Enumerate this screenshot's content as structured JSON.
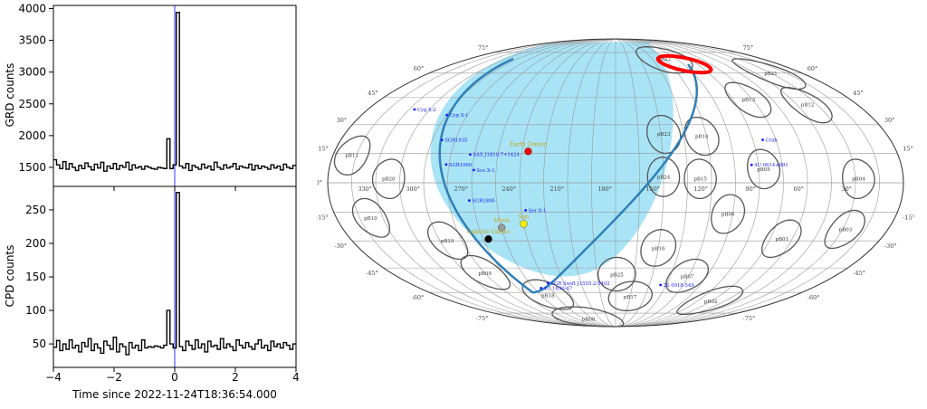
{
  "chart_data": [
    {
      "type": "line",
      "panels": [
        {
          "ylabel": "GRD counts",
          "ylim": [
            1200,
            4050
          ],
          "yticks": [
            "1500",
            "2000",
            "2500",
            "3000",
            "3500",
            "4000"
          ],
          "ytick_values": [
            1500,
            2000,
            2500,
            3000,
            3500,
            4000
          ],
          "background_values": [
            1620,
            1540,
            1480,
            1590,
            1470,
            1560,
            1500,
            1450,
            1530,
            1480,
            1570,
            1510,
            1460,
            1550,
            1490,
            1580,
            1440,
            1520,
            1480,
            1560,
            1470,
            1530,
            1500,
            1580,
            1460,
            1540,
            1490,
            1510,
            1470,
            1520,
            1500,
            1480,
            1470,
            1500,
            1490,
            1480,
            1950,
            1480,
            1540,
            1470,
            1520,
            1490,
            1560,
            1450,
            1530,
            1500,
            1470,
            1550,
            1490,
            1520,
            1460,
            1580,
            1500,
            1470,
            1540,
            1490,
            1510,
            1560,
            1470,
            1520,
            1500,
            1490,
            1550,
            1460,
            1530,
            1480,
            1520,
            1500,
            1470,
            1540,
            1490,
            1520,
            1460,
            1550,
            1500,
            1480,
            1530
          ],
          "peak_value": 3940
        },
        {
          "ylabel": "CPD counts",
          "ylim": [
            15,
            285
          ],
          "yticks": [
            "50",
            "100",
            "150",
            "200",
            "250"
          ],
          "ytick_values": [
            50,
            100,
            150,
            200,
            250
          ],
          "background_values": [
            45,
            55,
            40,
            50,
            42,
            56,
            44,
            48,
            38,
            52,
            46,
            58,
            40,
            50,
            44,
            36,
            54,
            48,
            42,
            60,
            38,
            50,
            46,
            34,
            52,
            44,
            48,
            40,
            56,
            44,
            46,
            45,
            47,
            46,
            44,
            48,
            100,
            50,
            44,
            52,
            46,
            40,
            54,
            48,
            42,
            56,
            44,
            50,
            38,
            54,
            46,
            48,
            42,
            58,
            44,
            50,
            46,
            40,
            56,
            48,
            44,
            52,
            46,
            42,
            50,
            56,
            44,
            48,
            40,
            54,
            46,
            50,
            44,
            52,
            48,
            42,
            50
          ],
          "peak_value": 276
        }
      ],
      "xlabel": "Time since 2022-11-24T18:36:54.000",
      "xlim": [
        -4,
        4
      ],
      "xticks": [
        "−4",
        "−2",
        "0",
        "2",
        "4"
      ],
      "xtick_values": [
        -4,
        -2,
        0,
        2,
        4
      ],
      "bin_width": 0.1,
      "trigger_time": 0,
      "colors": {
        "line": "#000000",
        "trigger": "#3333ff"
      }
    },
    {
      "type": "scatter",
      "projection": "mollweide",
      "ra_labels": [
        {
          "text": "330°",
          "ra": 330
        },
        {
          "text": "300°",
          "ra": 300
        },
        {
          "text": "270°",
          "ra": 270
        },
        {
          "text": "240°",
          "ra": 240
        },
        {
          "text": "210°",
          "ra": 210
        },
        {
          "text": "180°",
          "ra": 180
        },
        {
          "text": "150°",
          "ra": 150
        },
        {
          "text": "120°",
          "ra": 120
        },
        {
          "text": "90°",
          "ra": 90
        },
        {
          "text": "60°",
          "ra": 60
        },
        {
          "text": "30°",
          "ra": 30
        }
      ],
      "dec_labels": [
        "75°",
        "60°",
        "45°",
        "30°",
        "15°",
        "0°",
        "-15°",
        "-30°",
        "-45°",
        "-60°",
        "-75°"
      ],
      "dec_values": [
        75,
        60,
        45,
        30,
        15,
        0,
        -15,
        -30,
        -45,
        -60,
        -75
      ],
      "occultation_region": {
        "ra": 222,
        "dec": 22,
        "radius_deg": 72,
        "color": "#a8e4f6"
      },
      "detectors": [
        {
          "name": "pB11",
          "ra": 348,
          "dec": 14
        },
        {
          "name": "pB20",
          "ra": 322,
          "dec": 2
        },
        {
          "name": "pB10",
          "ra": 338,
          "dec": -18
        },
        {
          "name": "pB19",
          "ra": 295,
          "dec": -30
        },
        {
          "name": "pB09",
          "ra": 285,
          "dec": -48
        },
        {
          "name": "pB08",
          "ra": 232,
          "dec": -80
        },
        {
          "name": "pB18",
          "ra": 248,
          "dec": -62
        },
        {
          "name": "pB25",
          "ra": 179,
          "dec": -49
        },
        {
          "name": "pB17",
          "ra": 165,
          "dec": -63
        },
        {
          "name": "pB07",
          "ra": 121,
          "dec": -50
        },
        {
          "name": "pB16",
          "ra": 150,
          "dec": -34
        },
        {
          "name": "pB06",
          "ra": 108,
          "dec": -16
        },
        {
          "name": "pB01",
          "ra": 67,
          "dec": -29
        },
        {
          "name": "pB02",
          "ra": 75,
          "dec": -66
        },
        {
          "name": "pB03",
          "ra": 28,
          "dec": -24
        },
        {
          "name": "pB04",
          "ra": 28,
          "dec": 2
        },
        {
          "name": "pB05",
          "ra": 87,
          "dec": 7
        },
        {
          "name": "pB15",
          "ra": 127,
          "dec": 2
        },
        {
          "name": "pB24",
          "ra": 150,
          "dec": 3
        },
        {
          "name": "pB14",
          "ra": 123,
          "dec": 24
        },
        {
          "name": "pB23",
          "ra": 148,
          "dec": 25
        },
        {
          "name": "pB13",
          "ra": 78,
          "dec": 44
        },
        {
          "name": "pB12",
          "ra": 37,
          "dec": 41
        },
        {
          "name": "pB21",
          "ra": 30,
          "dec": 60
        },
        {
          "name": "pB22",
          "ra": 120,
          "dec": 70
        }
      ],
      "sources": [
        {
          "name": "Cyg X-2",
          "ra": 326.2,
          "dec": 38.3
        },
        {
          "name": "Cyg X-1",
          "ra": 299.6,
          "dec": 35.2
        },
        {
          "name": "SGR1935",
          "ra": 293.7,
          "dec": 21.9
        },
        {
          "name": "SAX J1810.7+1424",
          "ra": 272.7,
          "dec": 14.4
        },
        {
          "name": "SGR1900",
          "ra": 286.8,
          "dec": 9.3
        },
        {
          "name": "Sco X-1",
          "ra": 269,
          "dec": 6.5
        },
        {
          "name": "SGR1806",
          "ra": 272.2,
          "dec": -9
        },
        {
          "name": "Ser X-1",
          "ra": 237.3,
          "dec": -14
        },
        {
          "name": "SGR Swift J1555.2-5402",
          "ra": 238.8,
          "dec": -54
        },
        {
          "name": "4U 1630-47",
          "ra": 248.5,
          "dec": -57.2
        },
        {
          "name": "2S 0918-549",
          "ra": 140.1,
          "dec": -55.2
        },
        {
          "name": "Crab",
          "ra": 83.6,
          "dec": 22
        },
        {
          "name": "4U 0614+091",
          "ra": 94.3,
          "dec": 9.1
        }
      ],
      "markers": [
        {
          "name": "Earth Center",
          "ra": 236,
          "dec": 16,
          "color": "#ff0000"
        },
        {
          "name": "Sun",
          "ra": 240,
          "dec": -21,
          "color": "#ffee00"
        },
        {
          "name": "Moon",
          "ra": 255,
          "dec": -23,
          "color": "#999999"
        },
        {
          "name": "Galactic Center",
          "ra": 266.4,
          "dec": -29,
          "color": "#000000"
        }
      ],
      "label_color": "#c8a000",
      "source_color": "#1a1aff",
      "orbit_color": "#2f7fb8",
      "burst": {
        "ra": 104,
        "dec": 66,
        "color": "#ff0000"
      }
    }
  ]
}
